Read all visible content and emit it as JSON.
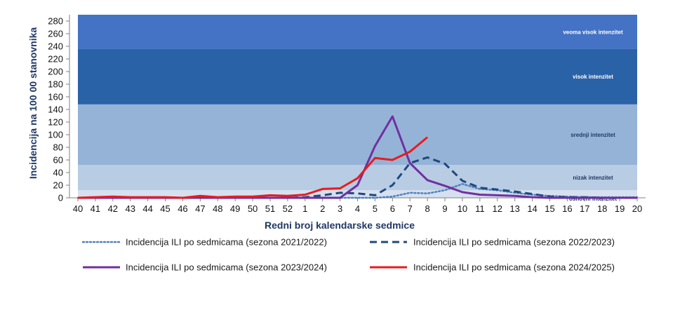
{
  "chart_data": {
    "type": "line",
    "title": "",
    "xlabel": "Redni broj kalendarske sedmice",
    "ylabel": "Incidencija na 100 00 stanovnika",
    "categories": [
      "40",
      "41",
      "42",
      "43",
      "44",
      "45",
      "46",
      "47",
      "48",
      "49",
      "50",
      "51",
      "52",
      "1",
      "2",
      "3",
      "4",
      "5",
      "6",
      "7",
      "8",
      "9",
      "10",
      "11",
      "12",
      "13",
      "14",
      "15",
      "16",
      "17",
      "18",
      "19",
      "20"
    ],
    "ylim": [
      0,
      290
    ],
    "yticks": [
      0,
      20,
      40,
      60,
      80,
      100,
      120,
      140,
      160,
      180,
      200,
      220,
      240,
      260,
      280
    ],
    "grid": false,
    "legend_position": "bottom",
    "bands": [
      {
        "label": "osnovni intenzitet",
        "from": 0,
        "to": 12,
        "color": "#d6e0ef",
        "text_color": "#1f3864"
      },
      {
        "label": "nizak intenzitet",
        "from": 12,
        "to": 52,
        "color": "#b8cce4",
        "text_color": "#1f3864"
      },
      {
        "label": "srednji intenzitet",
        "from": 52,
        "to": 148,
        "color": "#95b3d7",
        "text_color": "#1f3864"
      },
      {
        "label": "visok intenzitet",
        "from": 148,
        "to": 236,
        "color": "#2a62a8",
        "text_color": "#ffffff"
      },
      {
        "label": "veoma visok intenzitet",
        "from": 236,
        "to": 290,
        "color": "#4472c4",
        "text_color": "#ffffff"
      }
    ],
    "series": [
      {
        "name": "Incidencija ILI po sedmicama (sezona 2021/2022)",
        "color": "#4f81bd",
        "style": "dotted",
        "values": [
          0,
          0,
          0,
          0,
          0,
          0,
          0,
          0,
          0,
          0,
          0,
          0,
          0,
          0,
          0,
          0,
          0,
          0,
          2,
          8,
          7,
          12,
          22,
          14,
          12,
          8,
          5,
          3,
          2,
          1,
          1,
          1,
          1
        ]
      },
      {
        "name": "Incidencija ILI po sedmicama (sezona 2022/2023)",
        "color": "#1f497d",
        "style": "dashed",
        "values": [
          0,
          0,
          0,
          0,
          0,
          0,
          0,
          0,
          0,
          0,
          0,
          0,
          0,
          1,
          4,
          8,
          7,
          4,
          20,
          55,
          64,
          54,
          27,
          16,
          13,
          10,
          6,
          2,
          1,
          1,
          0,
          0,
          0
        ]
      },
      {
        "name": "Incidencija ILI po sedmicama (sezona 2023/2024)",
        "color": "#7030a0",
        "style": "solid",
        "values": [
          0,
          0,
          0,
          0,
          0,
          0,
          0,
          0,
          0,
          0,
          0,
          0,
          0,
          0,
          0,
          0,
          20,
          82,
          129,
          55,
          28,
          19,
          9,
          5,
          4,
          3,
          1,
          0,
          0,
          0,
          0,
          0,
          0
        ]
      },
      {
        "name": "Incidencija ILI po sedmicama (sezona 2024/2025)",
        "color": "#e81c1c",
        "style": "solid",
        "values": [
          0,
          1,
          2,
          1,
          1,
          1,
          0,
          3,
          1,
          2,
          2,
          4,
          3,
          5,
          14,
          15,
          31,
          63,
          60,
          73,
          96,
          null,
          null,
          null,
          null,
          null,
          null,
          null,
          null,
          null,
          null,
          null,
          null
        ]
      }
    ]
  }
}
